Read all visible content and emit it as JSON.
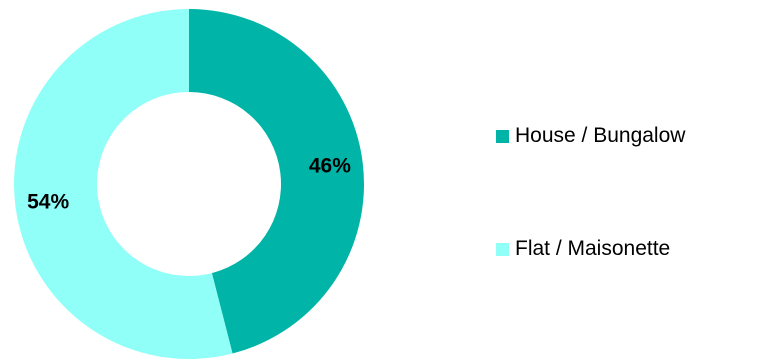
{
  "chart_data": {
    "type": "pie",
    "variant": "donut",
    "categories": [
      "House / Bungalow",
      "Flat / Maisonette"
    ],
    "values": [
      46,
      54
    ],
    "data_labels": [
      "46%",
      "54%"
    ],
    "colors": [
      "#00b5a8",
      "#8ffff8"
    ],
    "title": "",
    "legend_position": "right",
    "start_angle": "12 o'clock",
    "direction": "clockwise"
  },
  "legend": {
    "items": [
      {
        "label": "House / Bungalow",
        "color": "#00b5a8"
      },
      {
        "label": "Flat / Maisonette",
        "color": "#8ffff8"
      }
    ]
  }
}
